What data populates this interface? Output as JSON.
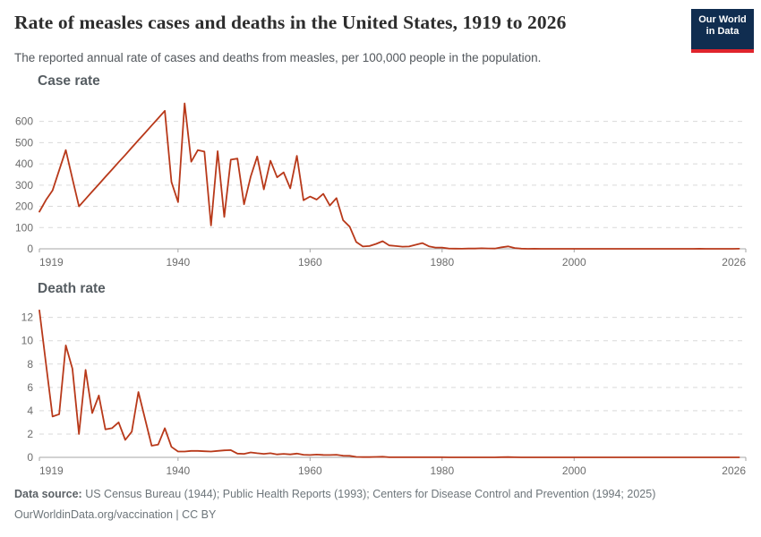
{
  "header": {
    "title": "Rate of measles cases and deaths in the United States, 1919 to 2026",
    "subtitle": "The reported annual rate of cases and deaths from measles, per 100,000 people in the population.",
    "logo": {
      "line1": "Our World",
      "line2": "in Data",
      "bg_color": "#102d50",
      "accent_color": "#e0242c"
    }
  },
  "style": {
    "line_color": "#b8391a",
    "grid_color": "#d9d9d9",
    "axis_color": "#a5a5a5",
    "tick_label_color": "#6c6c6c"
  },
  "chart_data": [
    {
      "type": "line",
      "title": "Case rate",
      "xlabel": "",
      "ylabel": "",
      "xlim": [
        1919,
        2026
      ],
      "ylim": [
        0,
        700
      ],
      "xticks": [
        1919,
        1940,
        1960,
        1980,
        2000,
        2026
      ],
      "yticks": [
        0,
        100,
        200,
        300,
        400,
        500,
        600
      ],
      "grid": "horizontal-dashed",
      "legend": "none",
      "line_color": "#b8391a",
      "x": [
        1919,
        1920,
        1921,
        1922,
        1923,
        1924,
        1925,
        1926,
        1927,
        1928,
        1929,
        1930,
        1931,
        1932,
        1933,
        1934,
        1935,
        1936,
        1937,
        1938,
        1939,
        1940,
        1941,
        1942,
        1943,
        1944,
        1945,
        1946,
        1947,
        1948,
        1949,
        1950,
        1951,
        1952,
        1953,
        1954,
        1955,
        1956,
        1957,
        1958,
        1959,
        1960,
        1961,
        1962,
        1963,
        1964,
        1965,
        1966,
        1967,
        1968,
        1969,
        1970,
        1971,
        1972,
        1973,
        1974,
        1975,
        1976,
        1977,
        1978,
        1979,
        1980,
        1981,
        1982,
        1983,
        1984,
        1985,
        1986,
        1987,
        1988,
        1989,
        1990,
        1991,
        1992,
        1993,
        1994,
        1995,
        1996,
        1997,
        1998,
        1999,
        2000,
        2001,
        2002,
        2003,
        2004,
        2005,
        2006,
        2007,
        2008,
        2009,
        2010,
        2011,
        2012,
        2013,
        2014,
        2015,
        2016,
        2017,
        2018,
        2019,
        2020,
        2021,
        2022,
        2023,
        2024,
        2025
      ],
      "values": [
        175,
        230,
        275,
        370,
        465,
        330,
        200,
        235,
        270,
        304,
        339,
        373,
        408,
        442,
        477,
        512,
        546,
        581,
        615,
        650,
        315,
        220,
        685,
        410,
        465,
        458,
        110,
        460,
        150,
        420,
        425,
        210,
        340,
        435,
        280,
        415,
        337,
        360,
        285,
        438,
        229,
        246,
        232,
        259,
        204,
        239,
        135,
        104,
        32,
        11,
        13,
        23,
        36,
        16,
        13,
        10,
        11,
        19,
        27,
        12,
        6,
        6,
        1.4,
        0.7,
        0.6,
        1.1,
        1.2,
        2.6,
        1.5,
        1.4,
        7.3,
        11.2,
        3.8,
        0.9,
        0.1,
        0.4,
        0.1,
        0.2,
        0.1,
        0.04,
        0.04,
        0.03,
        0.04,
        0.02,
        0.02,
        0.01,
        0.02,
        0.02,
        0.01,
        0.05,
        0.02,
        0.02,
        0.07,
        0.02,
        0.06,
        0.21,
        0.06,
        0.03,
        0.04,
        0.11,
        0.39,
        0.01,
        0.02,
        0.04,
        0.02,
        0.08,
        0.4
      ]
    },
    {
      "type": "line",
      "title": "Death rate",
      "xlabel": "",
      "ylabel": "",
      "xlim": [
        1919,
        2026
      ],
      "ylim": [
        0,
        13
      ],
      "xticks": [
        1919,
        1940,
        1960,
        1980,
        2000,
        2026
      ],
      "yticks": [
        0,
        2,
        4,
        6,
        8,
        10,
        12
      ],
      "grid": "horizontal-dashed",
      "legend": "none",
      "line_color": "#b8391a",
      "x": [
        1919,
        1920,
        1921,
        1922,
        1923,
        1924,
        1925,
        1926,
        1927,
        1928,
        1929,
        1930,
        1931,
        1932,
        1933,
        1934,
        1935,
        1936,
        1937,
        1938,
        1939,
        1940,
        1941,
        1942,
        1943,
        1944,
        1945,
        1946,
        1947,
        1948,
        1949,
        1950,
        1951,
        1952,
        1953,
        1954,
        1955,
        1956,
        1957,
        1958,
        1959,
        1960,
        1961,
        1962,
        1963,
        1964,
        1965,
        1966,
        1967,
        1968,
        1969,
        1970,
        1971,
        1972,
        1973,
        1974,
        1975,
        1976,
        1977,
        1978,
        1979,
        1980,
        1981,
        1982,
        1983,
        1984,
        1985,
        1986,
        1987,
        1988,
        1989,
        1990,
        1991,
        1992,
        1993,
        1994,
        1995,
        1996,
        1997,
        1998,
        1999,
        2000,
        2001,
        2002,
        2003,
        2004,
        2005,
        2006,
        2007,
        2008,
        2009,
        2010,
        2011,
        2012,
        2013,
        2014,
        2015,
        2016,
        2017,
        2018,
        2019,
        2020,
        2021,
        2022,
        2023,
        2024,
        2025
      ],
      "values": [
        12.6,
        8.0,
        3.5,
        3.7,
        9.6,
        7.6,
        2.0,
        7.5,
        3.8,
        5.3,
        2.4,
        2.5,
        3.0,
        1.5,
        2.2,
        5.6,
        3.3,
        1.0,
        1.1,
        2.5,
        0.9,
        0.5,
        0.5,
        0.55,
        0.55,
        0.52,
        0.5,
        0.55,
        0.6,
        0.62,
        0.32,
        0.3,
        0.42,
        0.35,
        0.3,
        0.35,
        0.25,
        0.3,
        0.25,
        0.32,
        0.22,
        0.2,
        0.24,
        0.21,
        0.2,
        0.22,
        0.14,
        0.13,
        0.04,
        0.02,
        0.02,
        0.04,
        0.05,
        0.01,
        0.01,
        0.01,
        0.01,
        0.01,
        0.01,
        0.01,
        0.005,
        0.005,
        0.002,
        0.002,
        0.002,
        0.002,
        0.002,
        0.002,
        0.002,
        0.002,
        0.016,
        0.026,
        0.011,
        0.002,
        0.001,
        0.001,
        0.001,
        0.001,
        0.001,
        0.001,
        0.001,
        0.001,
        0.001,
        0.001,
        0.001,
        0.001,
        0.001,
        0.001,
        0.001,
        0.001,
        0.001,
        0.001,
        0.001,
        0.001,
        0.001,
        0.001,
        0.001,
        0.001,
        0.001,
        0.001,
        0.001,
        0.001,
        0.001,
        0.001,
        0.001,
        0.001,
        0.002
      ]
    }
  ],
  "footer": {
    "source_label": "Data source:",
    "source_text": " US Census Bureau (1944); Public Health Reports (1993); Centers for Disease Control and Prevention (1994; 2025)",
    "link": "OurWorldinData.org/vaccination",
    "separator": " | ",
    "license": "CC BY"
  }
}
